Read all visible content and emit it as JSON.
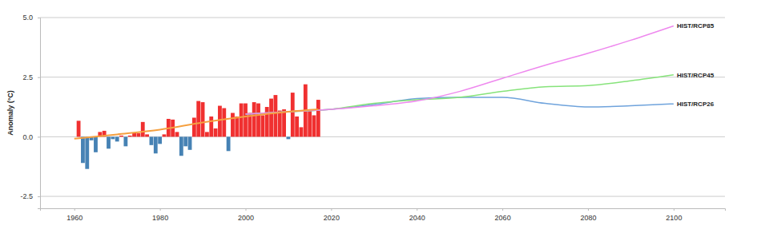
{
  "chart_data": {
    "type": "bar",
    "ylabel": "Anomaly (°C)",
    "x": [
      1961,
      1962,
      1963,
      1964,
      1965,
      1966,
      1967,
      1968,
      1969,
      1970,
      1971,
      1972,
      1973,
      1974,
      1975,
      1976,
      1977,
      1978,
      1979,
      1980,
      1981,
      1982,
      1983,
      1984,
      1985,
      1986,
      1987,
      1988,
      1989,
      1990,
      1991,
      1992,
      1993,
      1994,
      1995,
      1996,
      1997,
      1998,
      1999,
      2000,
      2001,
      2002,
      2003,
      2004,
      2005,
      2006,
      2007,
      2008,
      2009,
      2010,
      2011,
      2012,
      2013,
      2014,
      2015,
      2016,
      2017
    ],
    "values": [
      0.67,
      -1.1,
      -1.35,
      -0.15,
      -0.65,
      0.2,
      0.25,
      -0.5,
      -0.1,
      -0.2,
      0.05,
      -0.4,
      0.05,
      0.15,
      0.15,
      0.62,
      0.1,
      -0.35,
      -0.7,
      -0.3,
      0.1,
      0.75,
      0.72,
      0.2,
      -0.8,
      -0.4,
      -0.55,
      0.8,
      1.5,
      1.45,
      0.2,
      0.85,
      0.35,
      1.3,
      1.2,
      -0.6,
      1.0,
      0.85,
      1.4,
      1.4,
      1.0,
      1.45,
      1.4,
      0.9,
      1.25,
      1.6,
      1.75,
      1.1,
      1.15,
      -0.1,
      1.85,
      0.85,
      0.4,
      2.2,
      1.15,
      0.9,
      1.55
    ],
    "colors": [
      "#f03030",
      "#4682b4",
      "#4682b4",
      "#4682b4",
      "#4682b4",
      "#f03030",
      "#f03030",
      "#4682b4",
      "#4682b4",
      "#4682b4",
      "#f03030",
      "#4682b4",
      "#f03030",
      "#f03030",
      "#f03030",
      "#f03030",
      "#f03030",
      "#4682b4",
      "#4682b4",
      "#4682b4",
      "#f03030",
      "#f03030",
      "#f03030",
      "#f03030",
      "#4682b4",
      "#4682b4",
      "#4682b4",
      "#f03030",
      "#f03030",
      "#f03030",
      "#f03030",
      "#f03030",
      "#f03030",
      "#f03030",
      "#f03030",
      "#4682b4",
      "#f03030",
      "#f03030",
      "#f03030",
      "#f03030",
      "#f03030",
      "#f03030",
      "#f03030",
      "#f03030",
      "#f03030",
      "#f03030",
      "#f03030",
      "#f03030",
      "#f03030",
      "#4682b4",
      "#f03030",
      "#f03030",
      "#f03030",
      "#f03030",
      "#f03030",
      "#f03030",
      "#f03030"
    ],
    "series": [
      {
        "name": "HIST/RCP26",
        "type": "line",
        "color": "#6fa3dc",
        "x": [
          2000,
          2010,
          2020,
          2030,
          2040,
          2050,
          2060,
          2070,
          2080,
          2090,
          2100
        ],
        "values": [
          0.95,
          1.05,
          1.15,
          1.35,
          1.6,
          1.65,
          1.65,
          1.4,
          1.25,
          1.3,
          1.38
        ]
      },
      {
        "name": "HIST/RCP45",
        "type": "line",
        "color": "#86e37a",
        "x": [
          2000,
          2010,
          2020,
          2030,
          2040,
          2050,
          2060,
          2070,
          2080,
          2090,
          2100
        ],
        "values": [
          0.95,
          1.05,
          1.15,
          1.4,
          1.55,
          1.65,
          1.9,
          2.1,
          2.15,
          2.35,
          2.6
        ]
      },
      {
        "name": "HIST/RCP85",
        "type": "line",
        "color": "#ee88ee",
        "x": [
          2000,
          2010,
          2020,
          2030,
          2040,
          2050,
          2060,
          2070,
          2080,
          2090,
          2100
        ],
        "values": [
          0.95,
          1.05,
          1.15,
          1.3,
          1.5,
          1.9,
          2.45,
          3.0,
          3.5,
          4.05,
          4.65
        ]
      },
      {
        "type": "line",
        "color": "#f5a040",
        "x": [
          1960,
          1970,
          1980,
          1990,
          2000,
          2010,
          2017
        ],
        "values": [
          -0.08,
          0.1,
          0.3,
          0.6,
          0.85,
          1.05,
          1.15
        ]
      }
    ],
    "xlim": [
      1952,
      2112
    ],
    "ylim": [
      -3,
      5
    ],
    "xticks": [
      1960,
      1980,
      2000,
      2020,
      2040,
      2060,
      2080,
      2100
    ],
    "yticks": [
      -2.5,
      {
        "value": 0,
        "label": "0.0"
      },
      2.5,
      {
        "value": 5,
        "label": "5.0"
      }
    ],
    "grid": true
  }
}
